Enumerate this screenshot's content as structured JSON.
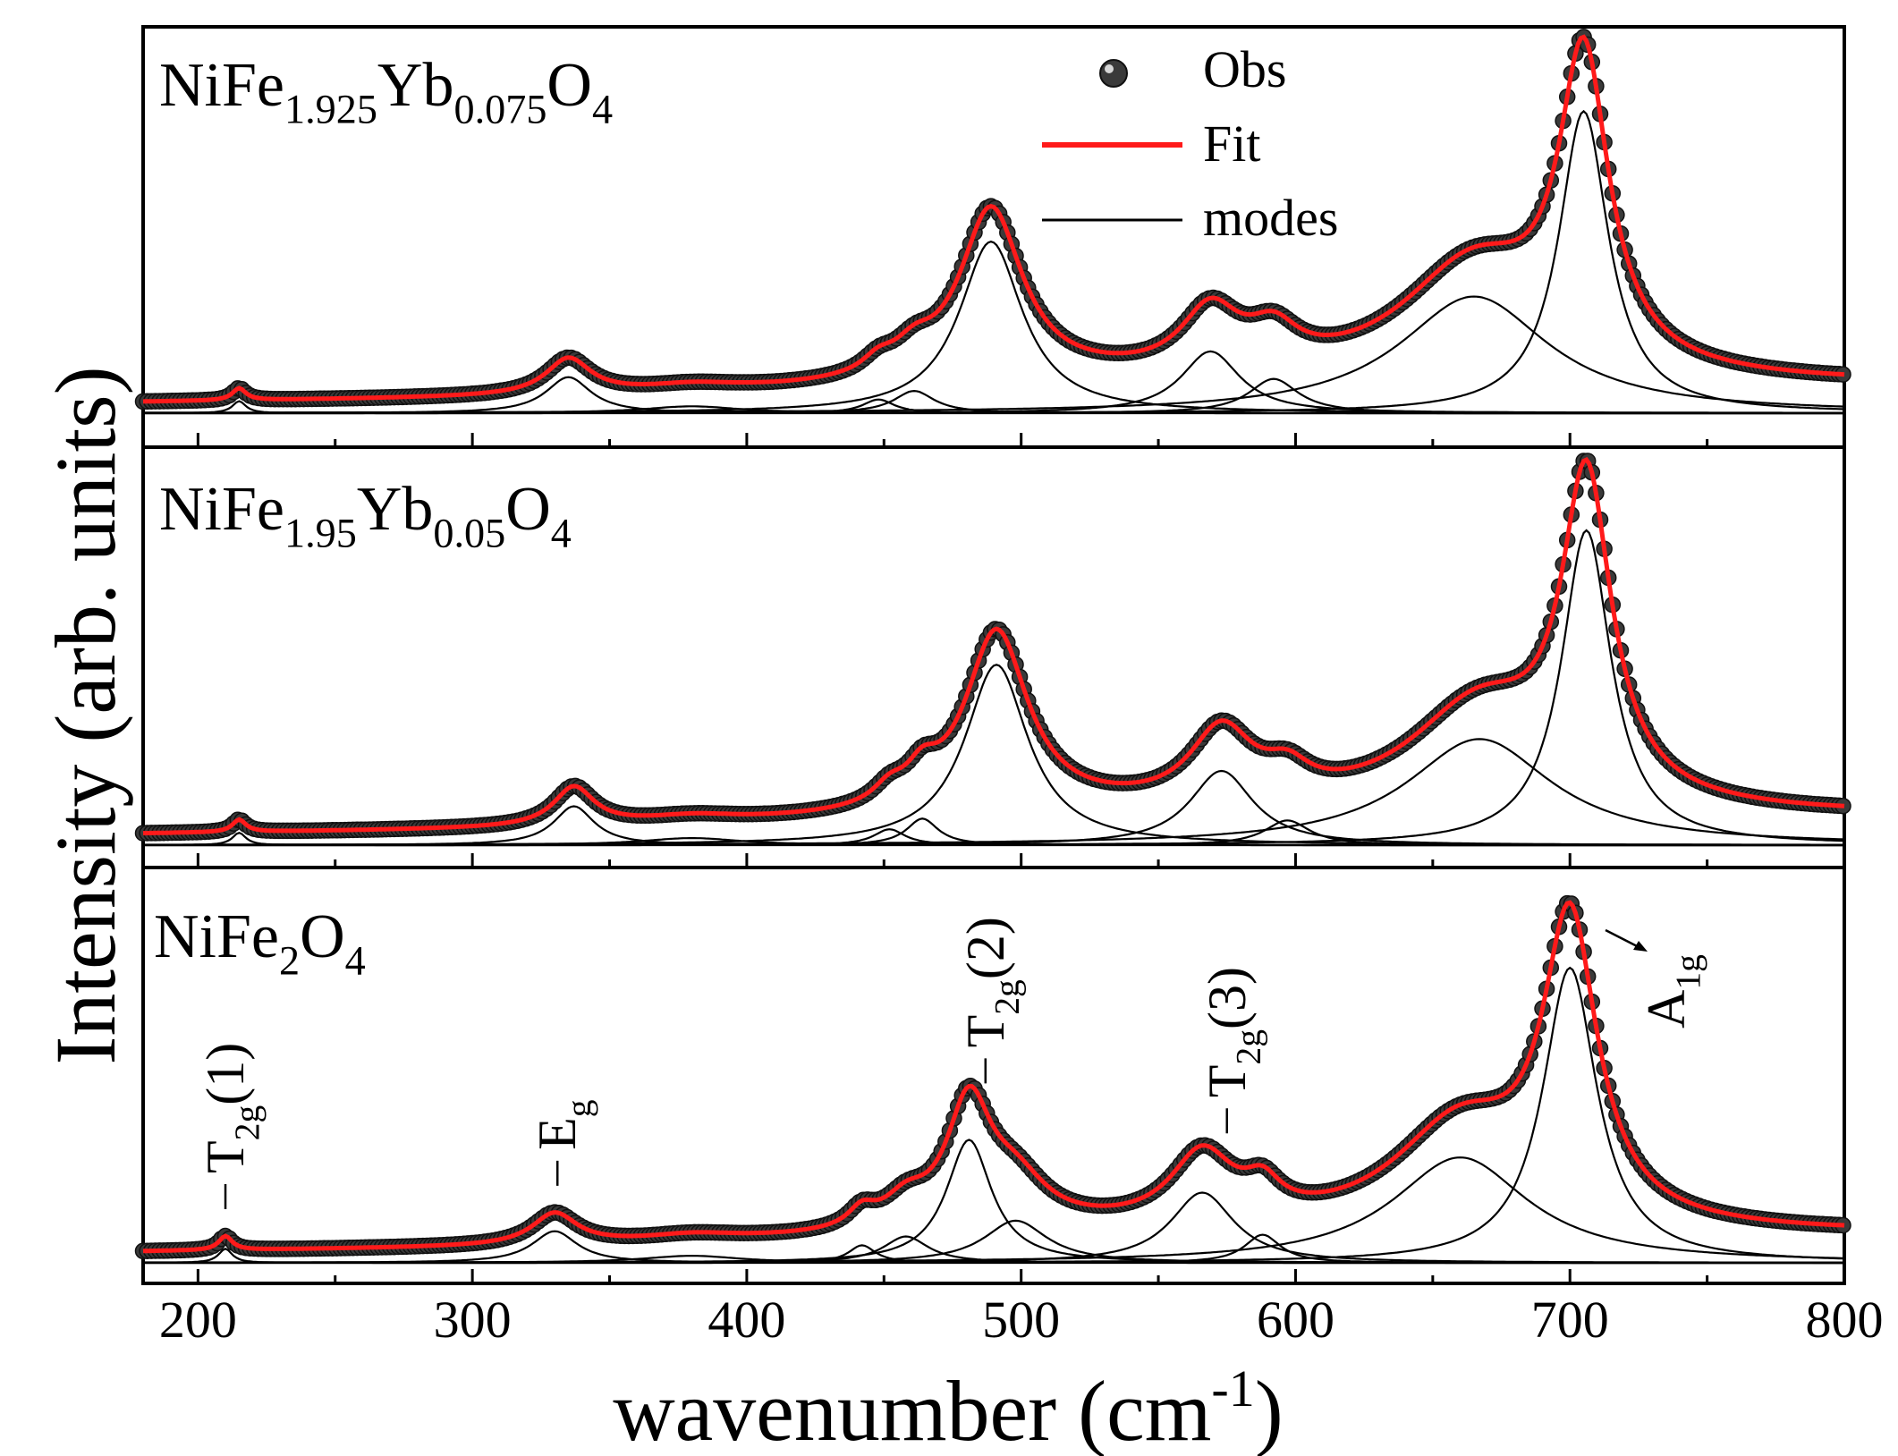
{
  "chart_data": {
    "type": "line",
    "title": "",
    "xlabel": "wavenumber (cm",
    "xlabel_sup": "-1",
    "xlabel_close": ")",
    "ylabel": "Intensity (arb. units)",
    "xlim": [
      180,
      800
    ],
    "xticks": [
      200,
      300,
      400,
      500,
      600,
      700,
      800
    ],
    "xtick_labels": [
      "200",
      "300",
      "400",
      "500",
      "600",
      "700",
      "800"
    ],
    "legend": {
      "placement": "top-center",
      "entries": [
        {
          "label": "Obs",
          "style": "marker"
        },
        {
          "label": "Fit",
          "style": "red-line"
        },
        {
          "label": "modes",
          "style": "black-line"
        }
      ]
    },
    "colors": {
      "fit": "#ff1a1a",
      "modes": "#000000",
      "obs": "#3a3a3a",
      "obs_edge": "#111111"
    },
    "panels": [
      {
        "sample": "NiFe1.925Yb0.075O4",
        "sample_parts": [
          {
            "t": "NiFe",
            "s": ""
          },
          {
            "t": "1.925",
            "s": "sub"
          },
          {
            "t": "Yb",
            "s": ""
          },
          {
            "t": "0.075",
            "s": "sub"
          },
          {
            "t": "O",
            "s": ""
          },
          {
            "t": "4",
            "s": "sub"
          }
        ],
        "ylim": [
          0,
          1.1
        ],
        "baseline": {
          "a": 0.03,
          "b": 0.05,
          "center": 520,
          "width": 110,
          "amp": 0.022
        },
        "modes": [
          {
            "center": 215,
            "amp": 0.035,
            "width": 3
          },
          {
            "center": 335,
            "amp": 0.105,
            "width": 10
          },
          {
            "center": 380,
            "amp": 0.02,
            "width": 22
          },
          {
            "center": 448,
            "amp": 0.04,
            "width": 7
          },
          {
            "center": 461,
            "amp": 0.065,
            "width": 9
          },
          {
            "center": 489,
            "amp": 0.5,
            "width": 14
          },
          {
            "center": 569,
            "amp": 0.18,
            "width": 13
          },
          {
            "center": 592,
            "amp": 0.1,
            "width": 11
          },
          {
            "center": 665,
            "amp": 0.34,
            "width": 33
          },
          {
            "center": 705,
            "amp": 0.88,
            "width": 11
          }
        ]
      },
      {
        "sample": "NiFe1.95Yb0.05O4",
        "sample_parts": [
          {
            "t": "NiFe",
            "s": ""
          },
          {
            "t": "1.95",
            "s": "sub"
          },
          {
            "t": "Yb",
            "s": ""
          },
          {
            "t": "0.05",
            "s": "sub"
          },
          {
            "t": "O",
            "s": ""
          },
          {
            "t": "4",
            "s": "sub"
          }
        ],
        "ylim": [
          0,
          1.1
        ],
        "baseline": {
          "a": 0.03,
          "b": 0.05,
          "center": 520,
          "width": 110,
          "amp": 0.022
        },
        "modes": [
          {
            "center": 215,
            "amp": 0.035,
            "width": 3
          },
          {
            "center": 337,
            "amp": 0.11,
            "width": 9
          },
          {
            "center": 380,
            "amp": 0.02,
            "width": 22
          },
          {
            "center": 452,
            "amp": 0.045,
            "width": 7
          },
          {
            "center": 464,
            "amp": 0.075,
            "width": 7
          },
          {
            "center": 491,
            "amp": 0.51,
            "width": 14
          },
          {
            "center": 573,
            "amp": 0.21,
            "width": 14
          },
          {
            "center": 597,
            "amp": 0.07,
            "width": 10
          },
          {
            "center": 667,
            "amp": 0.3,
            "width": 32
          },
          {
            "center": 706,
            "amp": 0.89,
            "width": 11
          }
        ]
      },
      {
        "sample": "NiFe2O4",
        "sample_parts": [
          {
            "t": "NiFe",
            "s": ""
          },
          {
            "t": "2",
            "s": "sub"
          },
          {
            "t": "O",
            "s": ""
          },
          {
            "t": "4",
            "s": "sub"
          }
        ],
        "ylim": [
          0,
          1.1
        ],
        "baseline": {
          "a": 0.03,
          "b": 0.05,
          "center": 520,
          "width": 110,
          "amp": 0.022
        },
        "modes": [
          {
            "center": 210,
            "amp": 0.04,
            "width": 3
          },
          {
            "center": 330,
            "amp": 0.09,
            "width": 10
          },
          {
            "center": 380,
            "amp": 0.02,
            "width": 22
          },
          {
            "center": 442,
            "amp": 0.05,
            "width": 6
          },
          {
            "center": 458,
            "amp": 0.075,
            "width": 10
          },
          {
            "center": 481,
            "amp": 0.35,
            "width": 10
          },
          {
            "center": 498,
            "amp": 0.12,
            "width": 14
          },
          {
            "center": 566,
            "amp": 0.2,
            "width": 14
          },
          {
            "center": 588,
            "amp": 0.08,
            "width": 8
          },
          {
            "center": 660,
            "amp": 0.3,
            "width": 30
          },
          {
            "center": 700,
            "amp": 0.84,
            "width": 12
          }
        ],
        "annotations": [
          {
            "id": "t2g1",
            "parts": [
              {
                "t": "T",
                "s": ""
              },
              {
                "t": "2g",
                "s": "sub"
              },
              {
                "t": "(1)",
                "s": ""
              }
            ],
            "x": 210
          },
          {
            "id": "eg",
            "parts": [
              {
                "t": "E",
                "s": ""
              },
              {
                "t": "g",
                "s": "sub"
              }
            ],
            "x": 331
          },
          {
            "id": "t2g2",
            "parts": [
              {
                "t": "T",
                "s": ""
              },
              {
                "t": "2g",
                "s": "sub"
              },
              {
                "t": "(2)",
                "s": ""
              }
            ],
            "x": 487
          },
          {
            "id": "t2g3",
            "parts": [
              {
                "t": "T",
                "s": ""
              },
              {
                "t": "2g",
                "s": "sub"
              },
              {
                "t": "(3)",
                "s": ""
              }
            ],
            "x": 575
          },
          {
            "id": "a1g",
            "parts": [
              {
                "t": "A",
                "s": ""
              },
              {
                "t": "1g",
                "s": "sub"
              }
            ],
            "x": 730
          }
        ]
      }
    ]
  }
}
